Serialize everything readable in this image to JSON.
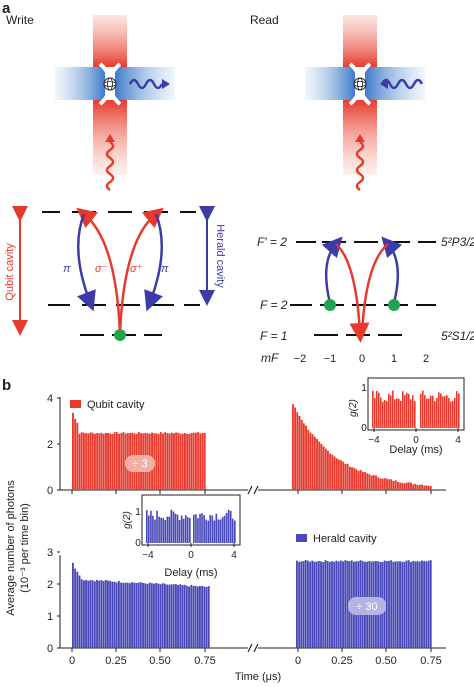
{
  "panel_a": {
    "letter": "a",
    "write_title": "Write",
    "read_title": "Read",
    "qubit_cavity_label": "Qubit cavity",
    "herald_cavity_label": "Herald cavity",
    "pi_label": "π",
    "sigma_minus_label": "σ⁻",
    "sigma_plus_label": "σ⁺",
    "f_prime_2": "F′ = 2",
    "f_2": "F = 2",
    "f_1": "F = 1",
    "p_state": "5²P3/2",
    "s_state": "5²S1/2",
    "mf_label": "mF",
    "mf_values": [
      "−2",
      "−1",
      "0",
      "1",
      "2"
    ],
    "colors": {
      "red": "#e8392c",
      "blue": "#3c3ca8",
      "green": "#22a350"
    }
  },
  "panel_b": {
    "letter": "b",
    "y_axis_title": "Average number of photons",
    "y_axis_sub": "(10⁻³ per time bin)",
    "x_axis_title": "Time (μs)",
    "top_legend": "Qubit cavity",
    "bottom_legend": "Herald cavity",
    "top_yticks": [
      "0",
      "2",
      "4"
    ],
    "bottom_yticks": [
      "0",
      "1",
      "2",
      "3"
    ],
    "xticks": [
      "0",
      "0.25",
      "0.50",
      "0.75"
    ],
    "scale_top": "÷ 3",
    "scale_bottom": "÷ 30",
    "inset_ylabel": "g(2)",
    "inset_xlabel": "Delay (ms)",
    "inset_xticks": [
      "−4",
      "0",
      "4"
    ],
    "inset_yticks": [
      "0",
      "1"
    ],
    "colors": {
      "red": "#e8392c",
      "blue": "#4848b8"
    }
  }
}
